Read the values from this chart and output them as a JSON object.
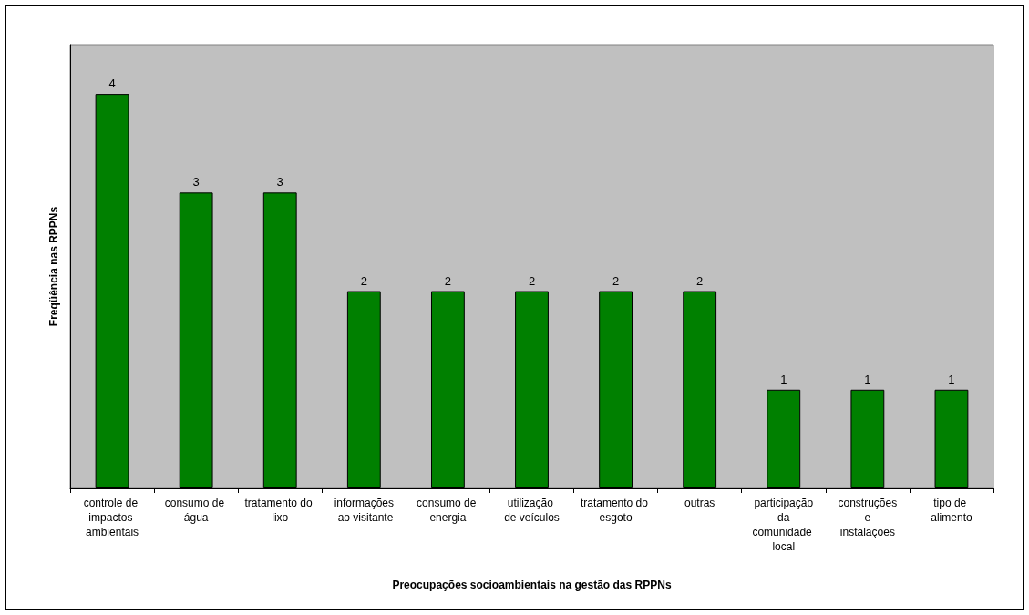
{
  "chart_data": {
    "type": "bar",
    "xlabel": "Preocupações socioambientais na gestão das RPPNs",
    "ylabel": "Freqüência nas RPPNs",
    "categories": [
      "controle de impactos ambientais",
      "consumo de água",
      "tratamento do lixo",
      "informações ao visitante",
      "consumo de energia",
      "utilização de veículos",
      "tratamento do esgoto",
      "outras",
      "participação da comunidade local",
      "construções e instalações",
      "tipo de alimento"
    ],
    "values": [
      4,
      3,
      3,
      2,
      2,
      2,
      2,
      2,
      1,
      1,
      1
    ],
    "color": "#008000",
    "ylim": [
      0,
      4.5
    ],
    "data_labels": true
  }
}
